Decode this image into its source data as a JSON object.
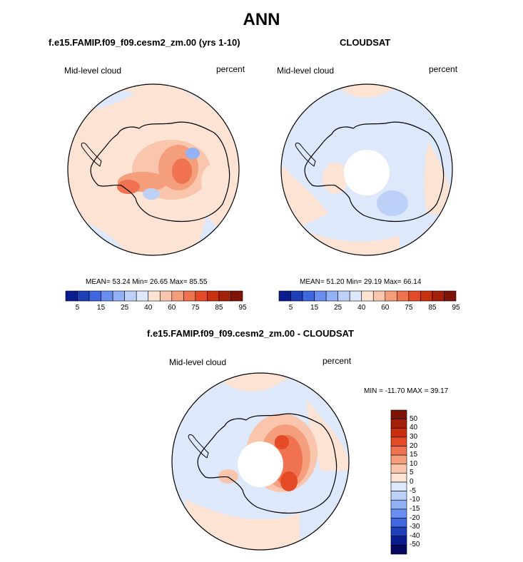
{
  "figure": {
    "title": "ANN"
  },
  "panels": [
    {
      "title": "f.e15.FAMIP.f09_f09.cesm2_zm.00 (yrs 1-10)",
      "variable_label": "Mid-level cloud",
      "units": "percent",
      "stats": "MEAN= 53.24  Min= 26.65  Max= 85.55",
      "polar_hole": false
    },
    {
      "title": "CLOUDSAT",
      "variable_label": "Mid-level cloud",
      "units": "percent",
      "stats": "MEAN= 51.20  Min= 29.19  Max= 66.14",
      "polar_hole": true
    },
    {
      "title": "f.e15.FAMIP.f09_f09.cesm2_zm.00 - CLOUDSAT",
      "variable_label": "Mid-level cloud",
      "units": "percent",
      "stats": "MIN = -11.70  MAX =  39.17",
      "polar_hole": true
    }
  ],
  "chart_data": [
    {
      "type": "heatmap",
      "projection": "south-polar-stereographic",
      "title": "f.e15.FAMIP.f09_f09.cesm2_zm.00 (yrs 1-10)",
      "variable": "Mid-level cloud",
      "units": "percent",
      "mean": 53.24,
      "min": 26.65,
      "max": 85.55,
      "colorbar": {
        "orientation": "horizontal",
        "tick_labels": [
          "5",
          "15",
          "25",
          "40",
          "60",
          "75",
          "85",
          "95"
        ],
        "colors": [
          "#0b1c8f",
          "#1f3fb8",
          "#3e67e0",
          "#6a8ff0",
          "#93b1f5",
          "#bcd0f8",
          "#dde8fb",
          "#fde3d4",
          "#f9c6ad",
          "#f59e7c",
          "#ef7350",
          "#e44a26",
          "#c8300f",
          "#a3200a",
          "#7e1408"
        ]
      }
    },
    {
      "type": "heatmap",
      "projection": "south-polar-stereographic",
      "title": "CLOUDSAT",
      "variable": "Mid-level cloud",
      "units": "percent",
      "mean": 51.2,
      "min": 29.19,
      "max": 66.14,
      "colorbar": {
        "orientation": "horizontal",
        "tick_labels": [
          "5",
          "15",
          "25",
          "40",
          "60",
          "75",
          "85",
          "95"
        ],
        "colors": [
          "#0b1c8f",
          "#1f3fb8",
          "#3e67e0",
          "#6a8ff0",
          "#93b1f5",
          "#bcd0f8",
          "#dde8fb",
          "#fde3d4",
          "#f9c6ad",
          "#f59e7c",
          "#ef7350",
          "#e44a26",
          "#c8300f",
          "#a3200a",
          "#7e1408"
        ]
      }
    },
    {
      "type": "heatmap",
      "projection": "south-polar-stereographic",
      "title": "f.e15.FAMIP.f09_f09.cesm2_zm.00 - CLOUDSAT",
      "variable": "Mid-level cloud",
      "units": "percent",
      "min": -11.7,
      "max": 39.17,
      "colorbar": {
        "orientation": "vertical",
        "tick_labels": [
          "50",
          "40",
          "30",
          "20",
          "15",
          "10",
          "5",
          "0",
          "-5",
          "-10",
          "-15",
          "-20",
          "-30",
          "-40",
          "-50"
        ],
        "colors": [
          "#7e1408",
          "#a3200a",
          "#c8300f",
          "#e44a26",
          "#ef7350",
          "#f59e7c",
          "#f9c6ad",
          "#fde3d4",
          "#dde8fb",
          "#bcd0f8",
          "#93b1f5",
          "#6a8ff0",
          "#3e67e0",
          "#1f3fb8",
          "#0b1c8f",
          "#050a60"
        ]
      }
    }
  ]
}
